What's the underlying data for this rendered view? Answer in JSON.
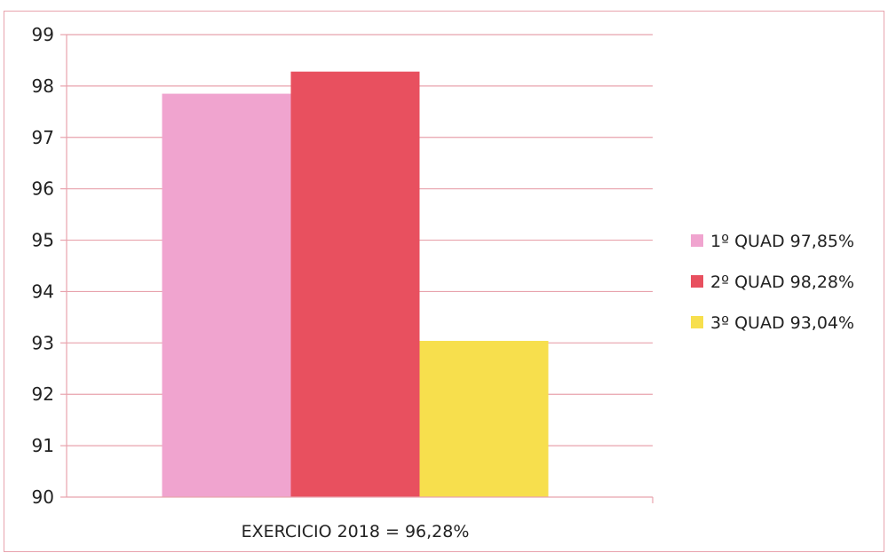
{
  "chart_data": {
    "type": "bar",
    "categories": [
      "EXERCICIO 2018 = 96,28%"
    ],
    "series": [
      {
        "name": "1º QUAD 97,85%",
        "values": [
          97.85
        ],
        "color": "#f0a4cf"
      },
      {
        "name": "2º QUAD 98,28%",
        "values": [
          98.28
        ],
        "color": "#e8505f"
      },
      {
        "name": "3º QUAD 93,04%",
        "values": [
          93.04
        ],
        "color": "#f7df4d"
      }
    ],
    "xlabel": "EXERCICIO 2018 = 96,28%",
    "ylim": [
      90,
      99
    ],
    "yticks": [
      90,
      91,
      92,
      93,
      94,
      95,
      96,
      97,
      98,
      99
    ],
    "ytick_labels": [
      "90",
      "91",
      "92",
      "93",
      "94",
      "95",
      "96",
      "97",
      "98",
      "99"
    ],
    "grid": true,
    "gridline_color": "#e8a3ad",
    "legend_position": "right"
  }
}
